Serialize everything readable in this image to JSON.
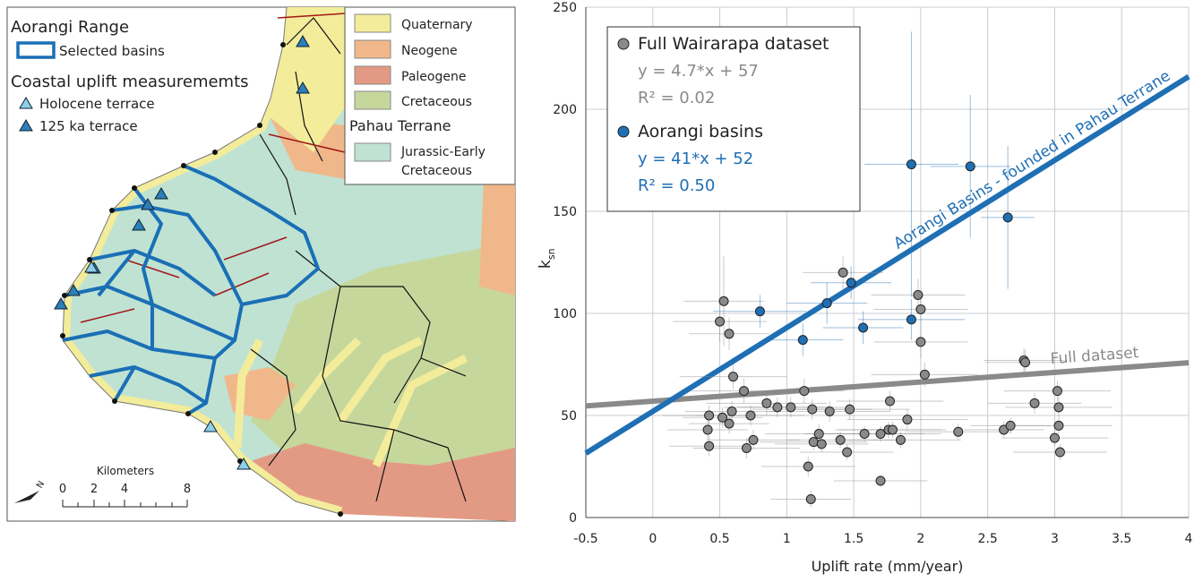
{
  "map": {
    "title": "Aorangi Range",
    "basins_label": "Selected basins",
    "uplift_title": "Coastal uplift measurememts",
    "holocene_label": "Holocene terrace",
    "ka125_label": "125 ka terrace",
    "geology": [
      "Quaternary",
      "Neogene",
      "Paleogene",
      "Cretaceous"
    ],
    "pahau_title": "Pahau Terrane",
    "pahau_unit": [
      "Jurassic-Early",
      "Cretaceous"
    ],
    "scale_title": "Kilometers",
    "scale_ticks": [
      0,
      2,
      4,
      8
    ],
    "north": "N"
  },
  "chart_data": {
    "type": "scatter",
    "xlabel": "Uplift rate (mm/year)",
    "ylabel": "k",
    "ylabel_subscript": "sn",
    "xlim": [
      -0.5,
      4
    ],
    "xticks": [
      -0.5,
      0,
      0.5,
      1,
      1.5,
      2,
      2.5,
      3,
      3.5,
      4
    ],
    "ylim": [
      0,
      250
    ],
    "yticks": [
      0,
      50,
      100,
      150,
      200,
      250
    ],
    "grid": true,
    "series": [
      {
        "name": "Full Wairarapa dataset",
        "color": "#8a8a8a",
        "x": [
          0.53,
          0.5,
          0.57,
          0.6,
          0.68,
          0.59,
          0.57,
          0.52,
          0.42,
          0.41,
          0.42,
          0.73,
          0.75,
          0.7,
          0.85,
          0.93,
          1.03,
          1.13,
          1.16,
          1.18,
          1.19,
          1.2,
          1.24,
          1.26,
          1.32,
          1.4,
          1.45,
          1.47,
          1.42,
          1.58,
          1.7,
          1.76,
          1.77,
          1.79,
          1.85,
          1.9,
          1.7,
          1.98,
          2.0,
          2.0,
          2.03,
          2.28,
          2.62,
          2.67,
          2.77,
          2.78,
          2.85,
          3.02,
          3.03,
          3.03,
          3.0,
          3.04
        ],
        "values": [
          106,
          96,
          90,
          69,
          62,
          52,
          46,
          49,
          50,
          43,
          35,
          50,
          38,
          34,
          56,
          54,
          54,
          62,
          25,
          9,
          53,
          37,
          41,
          36,
          52,
          38,
          32,
          53,
          120,
          41,
          41,
          43,
          57,
          43,
          38,
          48,
          18,
          109,
          102,
          86,
          70,
          42,
          43,
          45,
          77,
          76,
          56,
          62,
          54,
          45,
          39,
          32
        ],
        "x_err": [
          0.3,
          0.35,
          0.3,
          0.4,
          0.4,
          0.35,
          0.3,
          0.3,
          0.35,
          0.3,
          0.3,
          0.4,
          0.35,
          0.4,
          0.45,
          0.4,
          0.4,
          0.3,
          0.35,
          0.3,
          0.45,
          0.4,
          0.4,
          0.35,
          0.45,
          0.4,
          0.35,
          0.45,
          0.3,
          0.45,
          0.45,
          0.4,
          0.4,
          0.4,
          0.45,
          0.45,
          0.35,
          0.35,
          0.35,
          0.35,
          0.4,
          0.4,
          0.3,
          0.3,
          0.3,
          0.3,
          0.35,
          0.4,
          0.4,
          0.4,
          0.4,
          0.35
        ],
        "y_err": [
          22,
          10,
          8,
          6,
          6,
          5,
          5,
          5,
          5,
          5,
          5,
          5,
          5,
          5,
          6,
          5,
          5,
          6,
          5,
          4,
          5,
          4,
          5,
          4,
          5,
          4,
          4,
          5,
          8,
          4,
          4,
          4,
          5,
          4,
          4,
          5,
          3,
          8,
          8,
          8,
          6,
          4,
          4,
          4,
          6,
          6,
          5,
          5,
          5,
          4,
          4,
          4
        ],
        "fit": {
          "slope": 4.7,
          "intercept": 57,
          "equation": "y = 4.7*x + 57",
          "r2": "R² = 0.02",
          "label": "Full dataset"
        }
      },
      {
        "name": "Aorangi basins",
        "color": "#1f6fb4",
        "x": [
          1.93,
          2.37,
          2.65,
          1.48,
          1.3,
          0.8,
          1.93,
          1.12,
          1.57
        ],
        "values": [
          173,
          172,
          147,
          115,
          105,
          101,
          97,
          87,
          93
        ],
        "x_err": [
          0.35,
          0.3,
          0.2,
          0.3,
          0.3,
          0.35,
          0.4,
          0.3,
          0.3
        ],
        "y_err": [
          65,
          35,
          35,
          8,
          10,
          8,
          10,
          8,
          8
        ],
        "fit": {
          "slope": 41,
          "intercept": 52,
          "equation": "y = 41*x + 52",
          "r2": "R² = 0.50",
          "label": "Aorangi Basins - founded in Pahau Terrane"
        }
      }
    ]
  }
}
